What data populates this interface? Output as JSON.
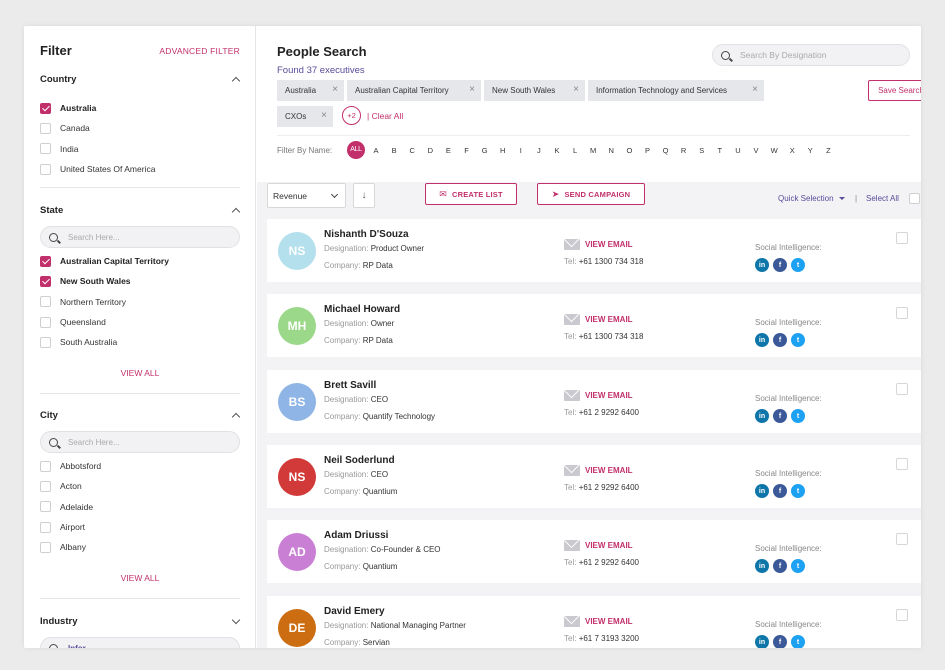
{
  "sidebar": {
    "title": "Filter",
    "advanced_filter": "ADVANCED FILTER",
    "country": {
      "title": "Country",
      "options": [
        {
          "label": "Australia",
          "checked": true
        },
        {
          "label": "Canada",
          "checked": false
        },
        {
          "label": "India",
          "checked": false
        },
        {
          "label": "United States Of America",
          "checked": false
        }
      ]
    },
    "state": {
      "title": "State",
      "placeholder": "Search Here...",
      "options": [
        {
          "label": "Australian Capital Territory",
          "checked": true
        },
        {
          "label": "New South Wales",
          "checked": true
        },
        {
          "label": "Northern Territory",
          "checked": false
        },
        {
          "label": "Queensland",
          "checked": false
        },
        {
          "label": "South Australia",
          "checked": false
        }
      ],
      "view_all": "VIEW ALL"
    },
    "city": {
      "title": "City",
      "placeholder": "Search Here...",
      "options": [
        {
          "label": "Abbotsford",
          "checked": false
        },
        {
          "label": "Acton",
          "checked": false
        },
        {
          "label": "Adelaide",
          "checked": false
        },
        {
          "label": "Airport",
          "checked": false
        },
        {
          "label": "Albany",
          "checked": false
        }
      ],
      "view_all": "VIEW ALL"
    },
    "industry": {
      "title": "Industry",
      "search_value": "Infor"
    }
  },
  "header": {
    "title": "People Search",
    "found_prefix": "Found",
    "found_count": "37",
    "found_suffix": "executives",
    "search_placeholder": "Search By Designation",
    "chips": [
      "Australia",
      "Australian Capital Territory",
      "New South Wales",
      "Information Technology and Services",
      "CXOs"
    ],
    "more_count": "+2",
    "clear_all": "| Clear All",
    "save_search": "Save Search",
    "filter_by_name": "Filter By Name:",
    "letters": [
      "ALL",
      "A",
      "B",
      "C",
      "D",
      "E",
      "F",
      "G",
      "H",
      "I",
      "J",
      "K",
      "L",
      "M",
      "N",
      "O",
      "P",
      "Q",
      "R",
      "S",
      "T",
      "U",
      "V",
      "W",
      "X",
      "Y",
      "Z"
    ]
  },
  "toolbar": {
    "sort_value": "Revenue",
    "create_list": "CREATE LIST",
    "send_campaign": "SEND CAMPAIGN",
    "quick_selection": "Quick Selection",
    "separator": "|",
    "select_all": "Select All"
  },
  "labels": {
    "designation": "Designation:",
    "company": "Company:",
    "tel": "Tel:",
    "view_email": "VIEW EMAIL",
    "social": "Social Intelligence:"
  },
  "people": [
    {
      "initials": "NS",
      "name": "Nishanth D'Souza",
      "designation": "Product Owner",
      "company": "RP Data",
      "tel": "+61 1300 734 318",
      "color": "#b3e0ec"
    },
    {
      "initials": "MH",
      "name": "Michael Howard",
      "designation": "Owner",
      "company": "RP Data",
      "tel": "+61 1300 734 318",
      "color": "#9bd88a"
    },
    {
      "initials": "BS",
      "name": "Brett Savill",
      "designation": "CEO",
      "company": "Quantify Technology",
      "tel": "+61 2 9292 6400",
      "color": "#8fb4e6"
    },
    {
      "initials": "NS",
      "name": "Neil Soderlund",
      "designation": "CEO",
      "company": "Quantium",
      "tel": "+61 2 9292 6400",
      "color": "#d23a3a"
    },
    {
      "initials": "AD",
      "name": "Adam Driussi",
      "designation": "Co-Founder & CEO",
      "company": "Quantium",
      "tel": "+61 2 9292 6400",
      "color": "#c97fd3"
    },
    {
      "initials": "DE",
      "name": "David Emery",
      "designation": "National Managing Partner",
      "company": "Servian",
      "tel": "+61 7 3193 3200",
      "color": "#cc6d12"
    }
  ],
  "colors": {
    "accent": "#c2306b",
    "link_purple": "#5b4a9a"
  }
}
